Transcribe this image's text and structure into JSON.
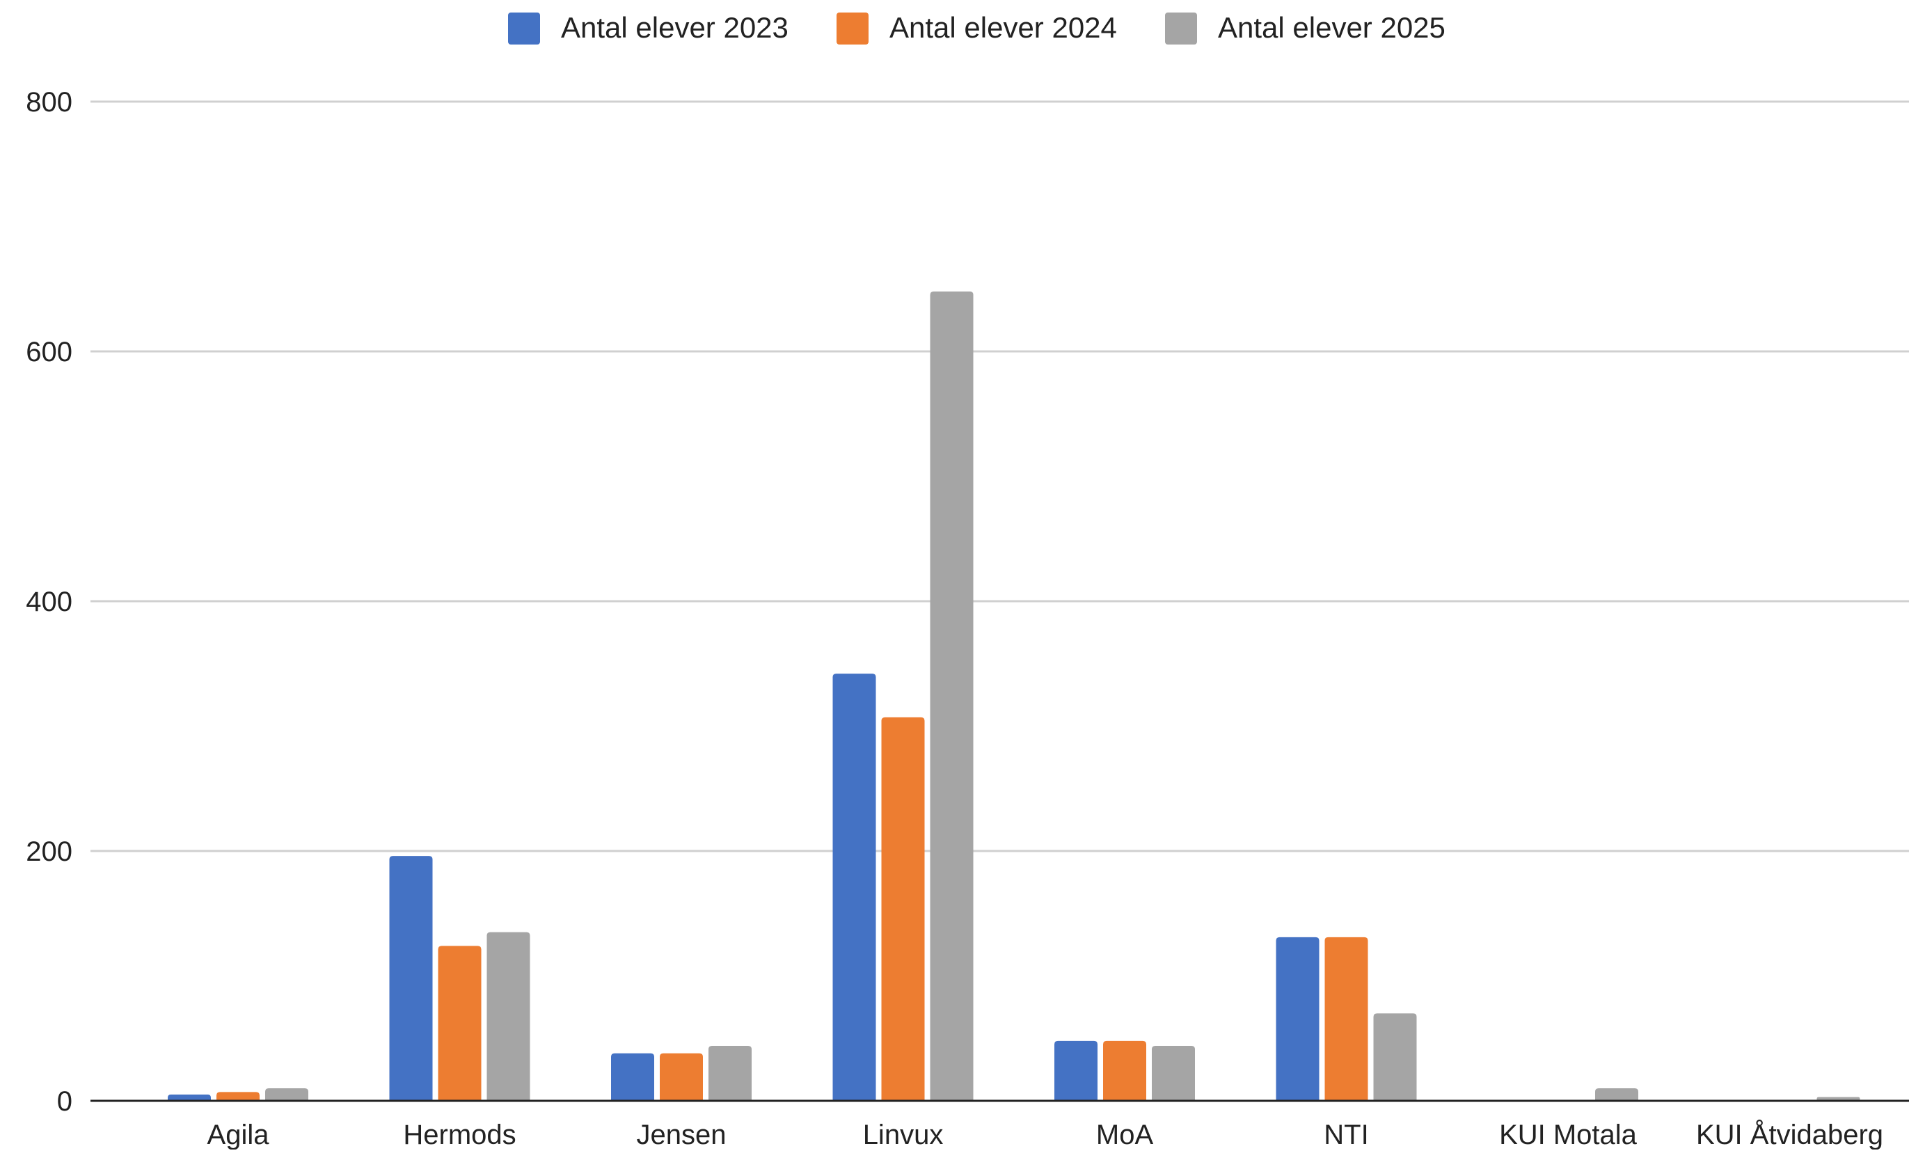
{
  "chart_data": {
    "type": "bar",
    "title": "",
    "xlabel": "",
    "ylabel": "",
    "categories": [
      "Agila",
      "Hermods",
      "Jensen",
      "Linvux",
      "MoA",
      "NTI",
      "KUI Motala",
      "KUI Åtvidaberg"
    ],
    "series": [
      {
        "name": "Antal elever 2023",
        "color": "#4472C4",
        "values": [
          5,
          196,
          38,
          342,
          48,
          131,
          0,
          0
        ]
      },
      {
        "name": "Antal elever 2024",
        "color": "#ED7D31",
        "values": [
          7,
          124,
          38,
          307,
          48,
          131,
          0,
          0
        ]
      },
      {
        "name": "Antal elever 2025",
        "color": "#A5A5A5",
        "values": [
          10,
          135,
          44,
          648,
          44,
          70,
          10,
          3
        ]
      }
    ],
    "ylim": [
      0,
      800
    ],
    "yticks": [
      0,
      200,
      400,
      600,
      800
    ],
    "grid": true,
    "legend_position": "top-center"
  }
}
